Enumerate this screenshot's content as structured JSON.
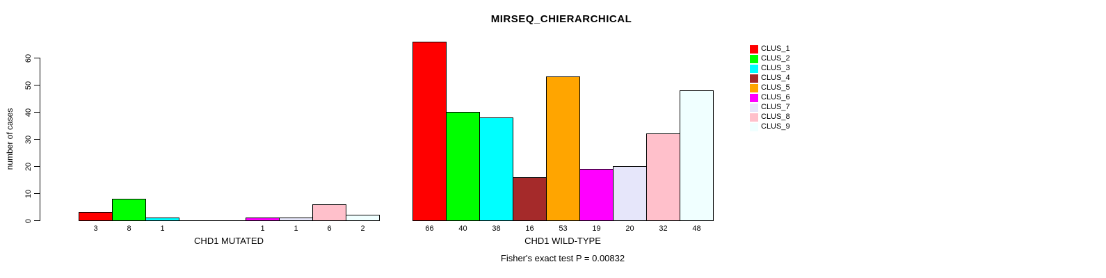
{
  "chart_data": {
    "type": "bar",
    "title": "MIRSEQ_CHIERARCHICAL",
    "ylabel": "number of cases",
    "footer": "Fisher's exact test P = 0.00832",
    "ylim": [
      0,
      60
    ],
    "yticks": [
      0,
      10,
      20,
      30,
      40,
      50,
      60
    ],
    "grid": false,
    "legend_position": "right",
    "categories": [
      "CLUS_1",
      "CLUS_2",
      "CLUS_3",
      "CLUS_4",
      "CLUS_5",
      "CLUS_6",
      "CLUS_7",
      "CLUS_8",
      "CLUS_9"
    ],
    "colors": [
      "#FF0000",
      "#00FF00",
      "#00FFFF",
      "#A52A2A",
      "#FFA500",
      "#FF00FF",
      "#E6E6FA",
      "#FFC0CB",
      "#F0FFFF"
    ],
    "groups": [
      {
        "label": "CHD1 MUTATED",
        "values": [
          3,
          8,
          1,
          0,
          0,
          1,
          1,
          6,
          2
        ]
      },
      {
        "label": "CHD1 WILD-TYPE",
        "values": [
          66,
          40,
          38,
          16,
          53,
          19,
          20,
          32,
          48
        ]
      }
    ],
    "legend": {
      "entries": [
        {
          "label": "CLUS_1",
          "color": "#FF0000"
        },
        {
          "label": "CLUS_2",
          "color": "#00FF00"
        },
        {
          "label": "CLUS_3",
          "color": "#00FFFF"
        },
        {
          "label": "CLUS_4",
          "color": "#A52A2A"
        },
        {
          "label": "CLUS_5",
          "color": "#FFA500"
        },
        {
          "label": "CLUS_6",
          "color": "#FF00FF"
        },
        {
          "label": "CLUS_7",
          "color": "#E6E6FA"
        },
        {
          "label": "CLUS_8",
          "color": "#FFC0CB"
        },
        {
          "label": "CLUS_9",
          "color": "#F0FFFF"
        }
      ]
    }
  }
}
